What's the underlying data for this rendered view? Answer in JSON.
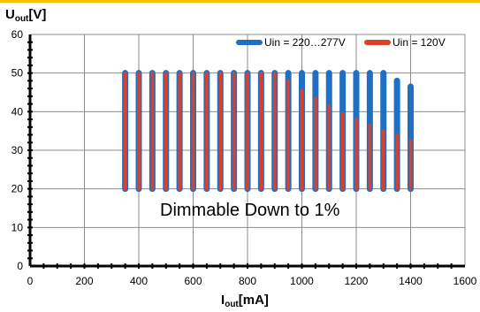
{
  "chart_data": {
    "type": "bar",
    "title": "",
    "ylabel": {
      "main": "U",
      "sub": "out",
      "unit": "[V]"
    },
    "xlabel": {
      "main": "I",
      "sub": "out",
      "unit": "[mA]"
    },
    "xlim": [
      0,
      1600
    ],
    "ylim": [
      0,
      60
    ],
    "x_ticks": [
      0,
      200,
      400,
      600,
      800,
      1000,
      1200,
      1400,
      1600
    ],
    "y_ticks": [
      0,
      10,
      20,
      30,
      40,
      50,
      60
    ],
    "grid": true,
    "legend_position": "top-right",
    "annotation": "Dimmable Down to 1%",
    "x": [
      350,
      400,
      450,
      500,
      550,
      600,
      650,
      700,
      750,
      800,
      850,
      900,
      950,
      1000,
      1050,
      1100,
      1150,
      1200,
      1250,
      1300,
      1350,
      1400
    ],
    "series": [
      {
        "name": "Uin = 220…277V",
        "color": "#1f6fc4",
        "low": [
          20,
          20,
          20,
          20,
          20,
          20,
          20,
          20,
          20,
          20,
          20,
          20,
          20,
          20,
          20,
          20,
          20,
          20,
          20,
          20,
          20,
          20
        ],
        "high": [
          50,
          50,
          50,
          50,
          50,
          50,
          50,
          50,
          50,
          50,
          50,
          50,
          50,
          50,
          50,
          50,
          50,
          50,
          50,
          50,
          48,
          46.5
        ]
      },
      {
        "name": "Uin = 120V",
        "color": "#d9412b",
        "low": [
          20,
          20,
          20,
          20,
          20,
          20,
          20,
          20,
          20,
          20,
          20,
          20,
          20,
          20,
          20,
          20,
          20,
          20,
          20,
          20,
          20,
          20
        ],
        "high": [
          50,
          50,
          50,
          50,
          50,
          50,
          50,
          50,
          50,
          50,
          50,
          50,
          48,
          45.5,
          43.5,
          41.5,
          39.5,
          38,
          36.5,
          35,
          34,
          32.5
        ]
      }
    ]
  }
}
